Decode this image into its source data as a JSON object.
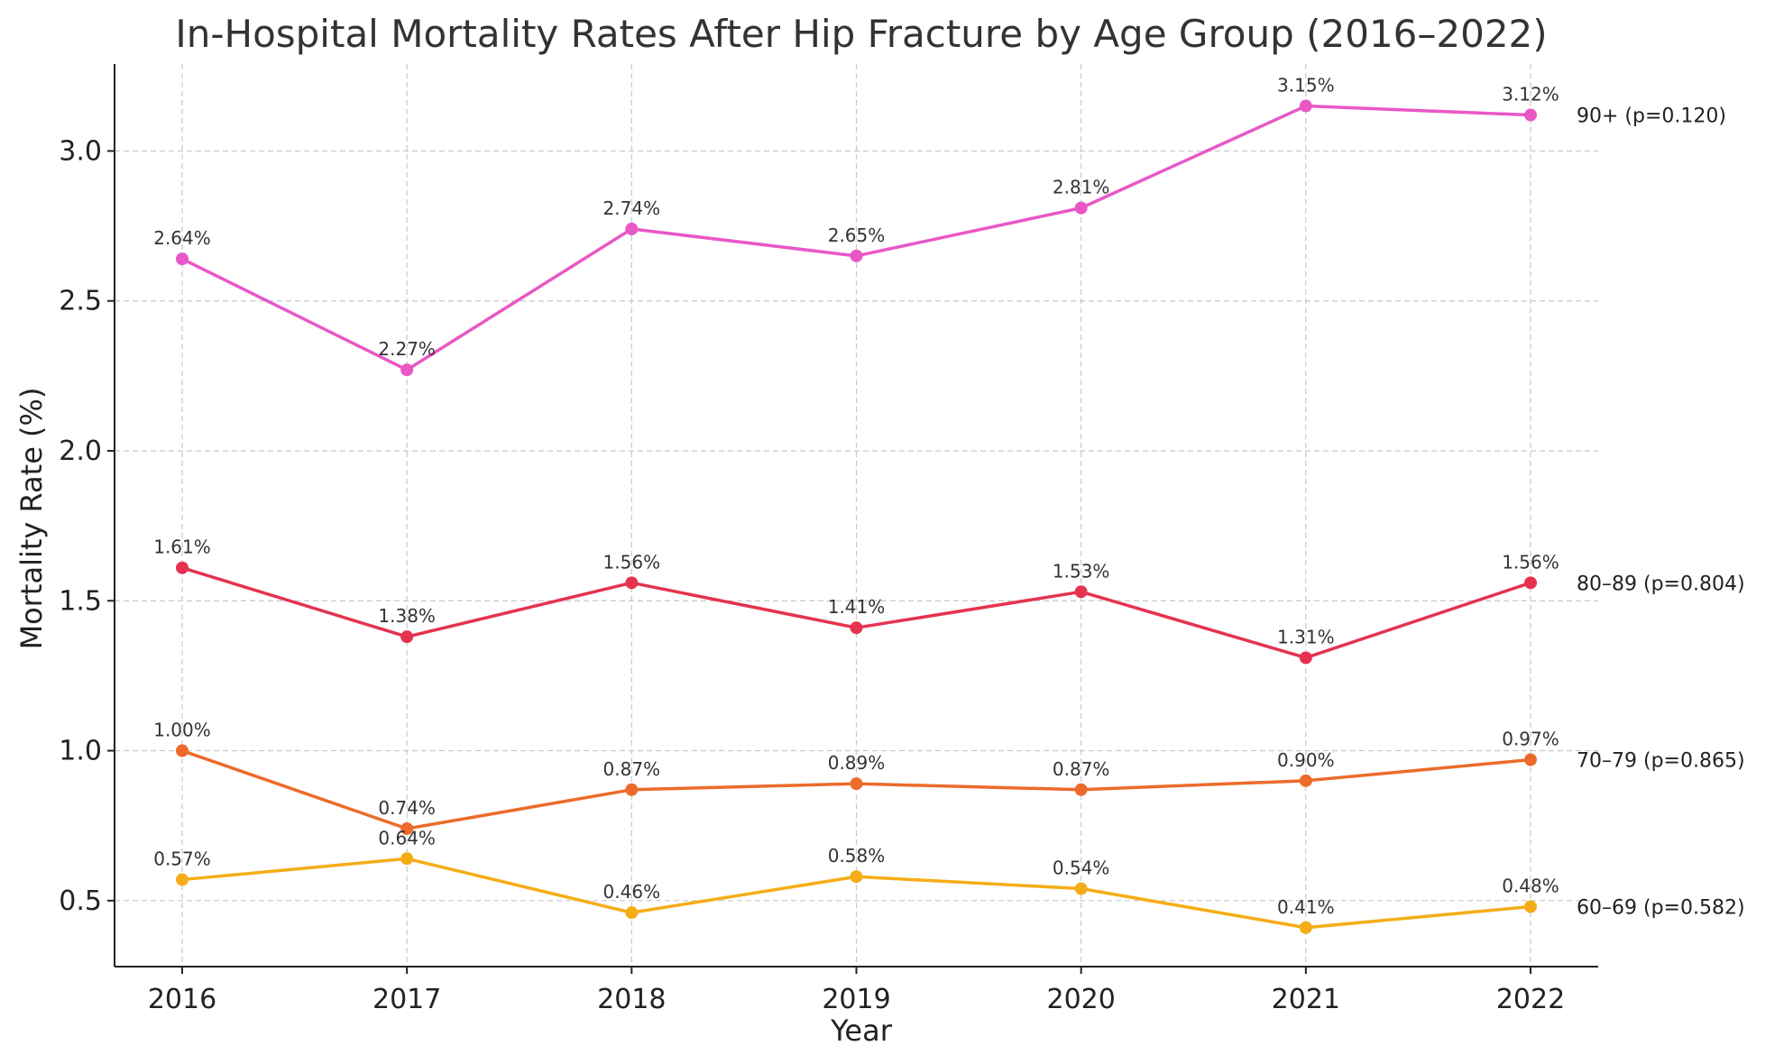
{
  "chart_data": {
    "type": "line",
    "title": "In-Hospital Mortality Rates After Hip Fracture by Age Group (2016–2022)",
    "xlabel": "Year",
    "ylabel": "Mortality Rate (%)",
    "x": [
      "2016",
      "2017",
      "2018",
      "2019",
      "2020",
      "2021",
      "2022"
    ],
    "ylim": [
      0.28,
      3.29
    ],
    "yticks": [
      0.5,
      1.0,
      1.5,
      2.0,
      2.5,
      3.0
    ],
    "ytick_labels": [
      "0.5",
      "1.0",
      "1.5",
      "2.0",
      "2.5",
      "3.0"
    ],
    "grid": true,
    "legend": "inline labels at right end of each line",
    "series": [
      {
        "name": "90+ (p=0.120)",
        "color": "#e957c6",
        "values": [
          2.64,
          2.27,
          2.74,
          2.65,
          2.81,
          3.15,
          3.12
        ],
        "labels": [
          "2.64%",
          "2.27%",
          "2.74%",
          "2.65%",
          "2.81%",
          "3.15%",
          "3.12%"
        ]
      },
      {
        "name": "80–89 (p=0.804)",
        "color": "#e5334f",
        "values": [
          1.61,
          1.38,
          1.56,
          1.41,
          1.53,
          1.31,
          1.56
        ],
        "labels": [
          "1.61%",
          "1.38%",
          "1.56%",
          "1.41%",
          "1.53%",
          "1.31%",
          "1.56%"
        ]
      },
      {
        "name": "70–79 (p=0.865)",
        "color": "#ec6b2a",
        "values": [
          1.0,
          0.74,
          0.87,
          0.89,
          0.87,
          0.9,
          0.97
        ],
        "labels": [
          "1.00%",
          "0.74%",
          "0.87%",
          "0.89%",
          "0.87%",
          "0.90%",
          "0.97%"
        ]
      },
      {
        "name": "60–69 (p=0.582)",
        "color": "#f5ad17",
        "values": [
          0.57,
          0.64,
          0.46,
          0.58,
          0.54,
          0.41,
          0.48
        ],
        "labels": [
          "0.57%",
          "0.64%",
          "0.46%",
          "0.58%",
          "0.54%",
          "0.41%",
          "0.48%"
        ]
      }
    ]
  }
}
